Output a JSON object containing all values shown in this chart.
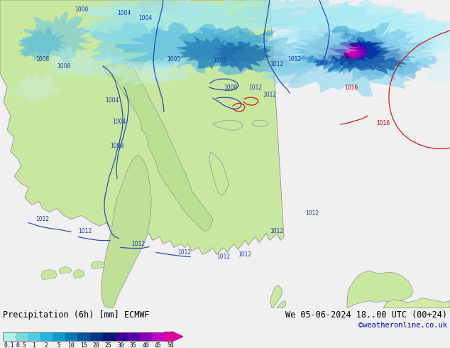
{
  "title_left": "Precipitation (6h) [mm] ECMWF",
  "title_right": "We 05-06-2024 18..00 UTC (00+24)",
  "copyright": "©weatheronline.co.uk",
  "colorbar_labels": [
    "0.1",
    "0.5",
    "1",
    "2",
    "5",
    "10",
    "15",
    "20",
    "25",
    "30",
    "35",
    "40",
    "45",
    "50"
  ],
  "colorbar_colors": [
    "#b4f0f0",
    "#7adcdc",
    "#50cce8",
    "#28b4e0",
    "#009cd0",
    "#0078b8",
    "#0054a0",
    "#003888",
    "#001c6c",
    "#380090",
    "#5800a8",
    "#8800bc",
    "#c000c0",
    "#e000a0"
  ],
  "figsize": [
    6.34,
    4.9
  ],
  "dpi": 100,
  "map_bg": "#f0f0f0",
  "legend_bg": "#f0f0f0",
  "land_color": "#c8e8a0",
  "ocean_color": "#f8f8f8",
  "precip_light_cyan": "#a0e8f0",
  "precip_mid_blue": "#4090d0",
  "precip_dark_blue": "#0030a0",
  "precip_purple": "#5000a0",
  "precip_magenta": "#c000c0",
  "contour_blue": "#1a3aaa",
  "contour_red": "#cc0000"
}
